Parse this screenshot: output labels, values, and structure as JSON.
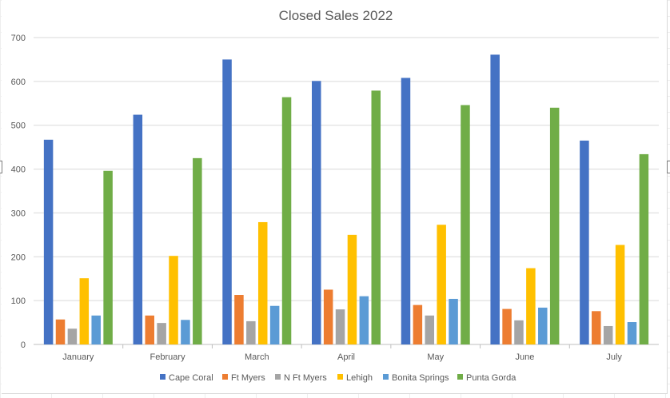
{
  "chart_data": {
    "type": "bar",
    "title": "Closed Sales 2022",
    "xlabel": "",
    "ylabel": "",
    "ylim": [
      0,
      700
    ],
    "yticks": [
      0,
      100,
      200,
      300,
      400,
      500,
      600,
      700
    ],
    "grid": true,
    "legend_position": "bottom",
    "categories": [
      "January",
      "February",
      "March",
      "April",
      "May",
      "June",
      "July"
    ],
    "series": [
      {
        "name": "Cape Coral",
        "color": "#4472C4",
        "values": [
          467,
          524,
          650,
          601,
          608,
          661,
          465
        ]
      },
      {
        "name": "Ft Myers",
        "color": "#ED7D31",
        "values": [
          57,
          66,
          113,
          125,
          90,
          81,
          76
        ]
      },
      {
        "name": "N Ft Myers",
        "color": "#A5A5A5",
        "values": [
          36,
          49,
          53,
          80,
          66,
          55,
          42
        ]
      },
      {
        "name": "Lehigh",
        "color": "#FFC000",
        "values": [
          151,
          202,
          279,
          250,
          273,
          174,
          227
        ]
      },
      {
        "name": "Bonita Springs",
        "color": "#5B9BD5",
        "values": [
          66,
          56,
          88,
          110,
          104,
          84,
          51
        ]
      },
      {
        "name": "Punta Gorda",
        "color": "#70AD47",
        "values": [
          396,
          425,
          564,
          579,
          546,
          540,
          434
        ]
      }
    ]
  }
}
